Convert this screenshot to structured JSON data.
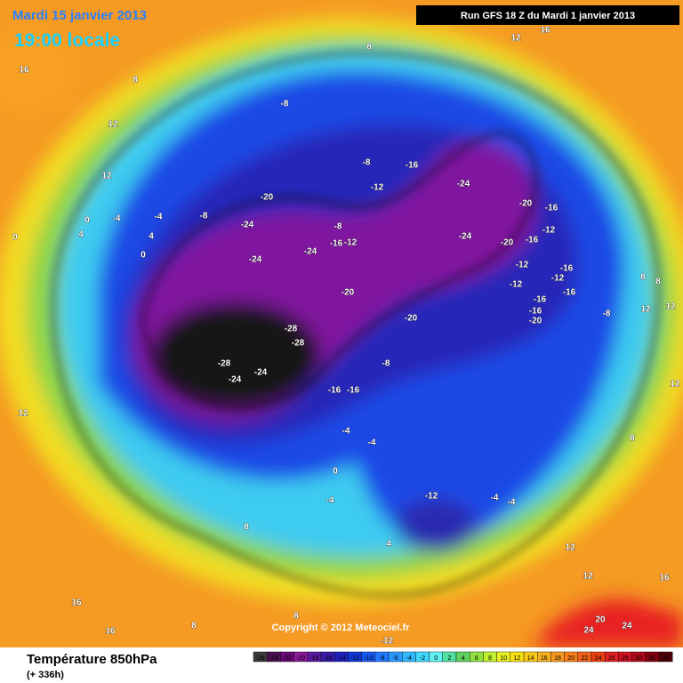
{
  "header": {
    "date": "Mardi 15 janvier 2013",
    "time": "19:00 locale",
    "run": "Run GFS 18 Z du Mardi 1 janvier 2013"
  },
  "map": {
    "copyright": "Copyright © 2012 Meteociel.fr",
    "contour_labels": [
      "16",
      "8",
      "12",
      "12",
      "8",
      "12",
      "16",
      "-8",
      "-8",
      "-16",
      "-12",
      "-24",
      "-20",
      "-20",
      "-16",
      "-8",
      "0",
      "-4",
      "-4",
      "4",
      "4",
      "0",
      "0",
      "-24",
      "-24",
      "-20",
      "-16",
      "-12",
      "-8",
      "-16",
      "-12",
      "-24",
      "-24",
      "-12",
      "-16",
      "-12",
      "-12",
      "-16",
      "-20",
      "-16",
      "-16",
      "-20",
      "-20",
      "-8",
      "8",
      "8",
      "12",
      "12",
      "-28",
      "-28",
      "-28",
      "-24",
      "-24",
      "-8",
      "-16",
      "-16",
      "12",
      "12",
      "-4",
      "-4",
      "8",
      "0",
      "-4",
      "-12",
      "-4",
      "-4",
      "8",
      "4",
      "12",
      "12",
      "16",
      "16",
      "8",
      "20",
      "24",
      "24",
      "16",
      "-12",
      "8"
    ]
  },
  "footer": {
    "title": "Température 850hPa",
    "subtitle": "(+ 336h)"
  },
  "legend": {
    "scale": [
      -26,
      -24,
      -22,
      -20,
      -18,
      -16,
      -14,
      -12,
      -10,
      -8,
      -6,
      -4,
      -2,
      0,
      2,
      4,
      6,
      8,
      10,
      12,
      14,
      16,
      18,
      20,
      22,
      24,
      26,
      28,
      30,
      32,
      34
    ],
    "colors": [
      "#3a3a3a",
      "#4a1050",
      "#6a0a78",
      "#8a1a9a",
      "#5a1aa0",
      "#3a1aa8",
      "#2020c0",
      "#1038d8",
      "#1858f0",
      "#2078ff",
      "#2898ff",
      "#30b8ff",
      "#40d8ff",
      "#60f0f0",
      "#50e0a0",
      "#60d060",
      "#90e040",
      "#c0f030",
      "#e8f020",
      "#f8e010",
      "#f8c818",
      "#f8b020",
      "#f89820",
      "#f88018",
      "#f06018",
      "#e84010",
      "#e02020",
      "#d01020",
      "#b00818",
      "#800010",
      "#500008"
    ]
  }
}
